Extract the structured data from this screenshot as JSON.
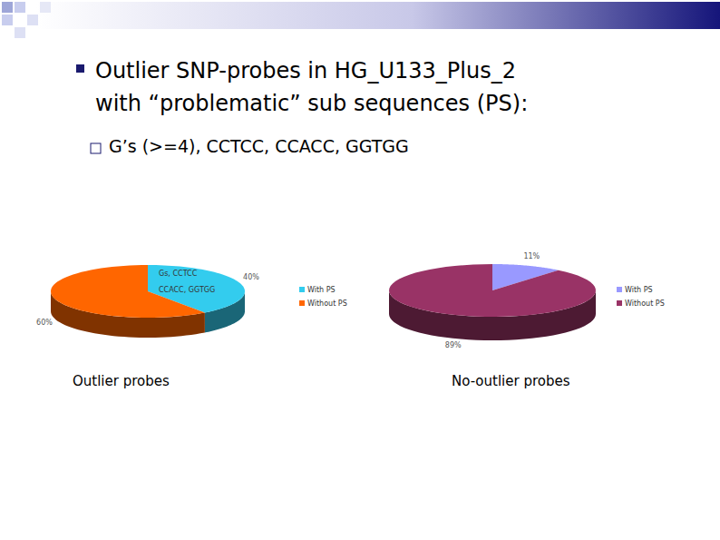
{
  "slide": {
    "title": [
      "Outlier SNP-probes in HG_U133_Plus_2",
      "with “problematic” sub sequences (PS):"
    ],
    "bullet": "G’s (>=4), CCTCC, CCACC, GGTGG"
  },
  "chart_data": [
    {
      "type": "pie",
      "title": "Outlier probes",
      "categories": [
        "With PS",
        "Without PS"
      ],
      "values": [
        40,
        60
      ],
      "value_labels": [
        "40%",
        "60%"
      ],
      "colors": [
        "#33ccee",
        "#ff6600"
      ],
      "annotations": [
        "Gs, CCTCC",
        "CCACC, GGTGG"
      ],
      "data_labels": true,
      "legend": "right"
    },
    {
      "type": "pie",
      "title": "No-outlier probes",
      "categories": [
        "With PS",
        "Without PS"
      ],
      "values": [
        11,
        89
      ],
      "value_labels": [
        "11%",
        "89%"
      ],
      "colors": [
        "#9999ff",
        "#993366"
      ],
      "data_labels": true,
      "legend": "right"
    }
  ]
}
